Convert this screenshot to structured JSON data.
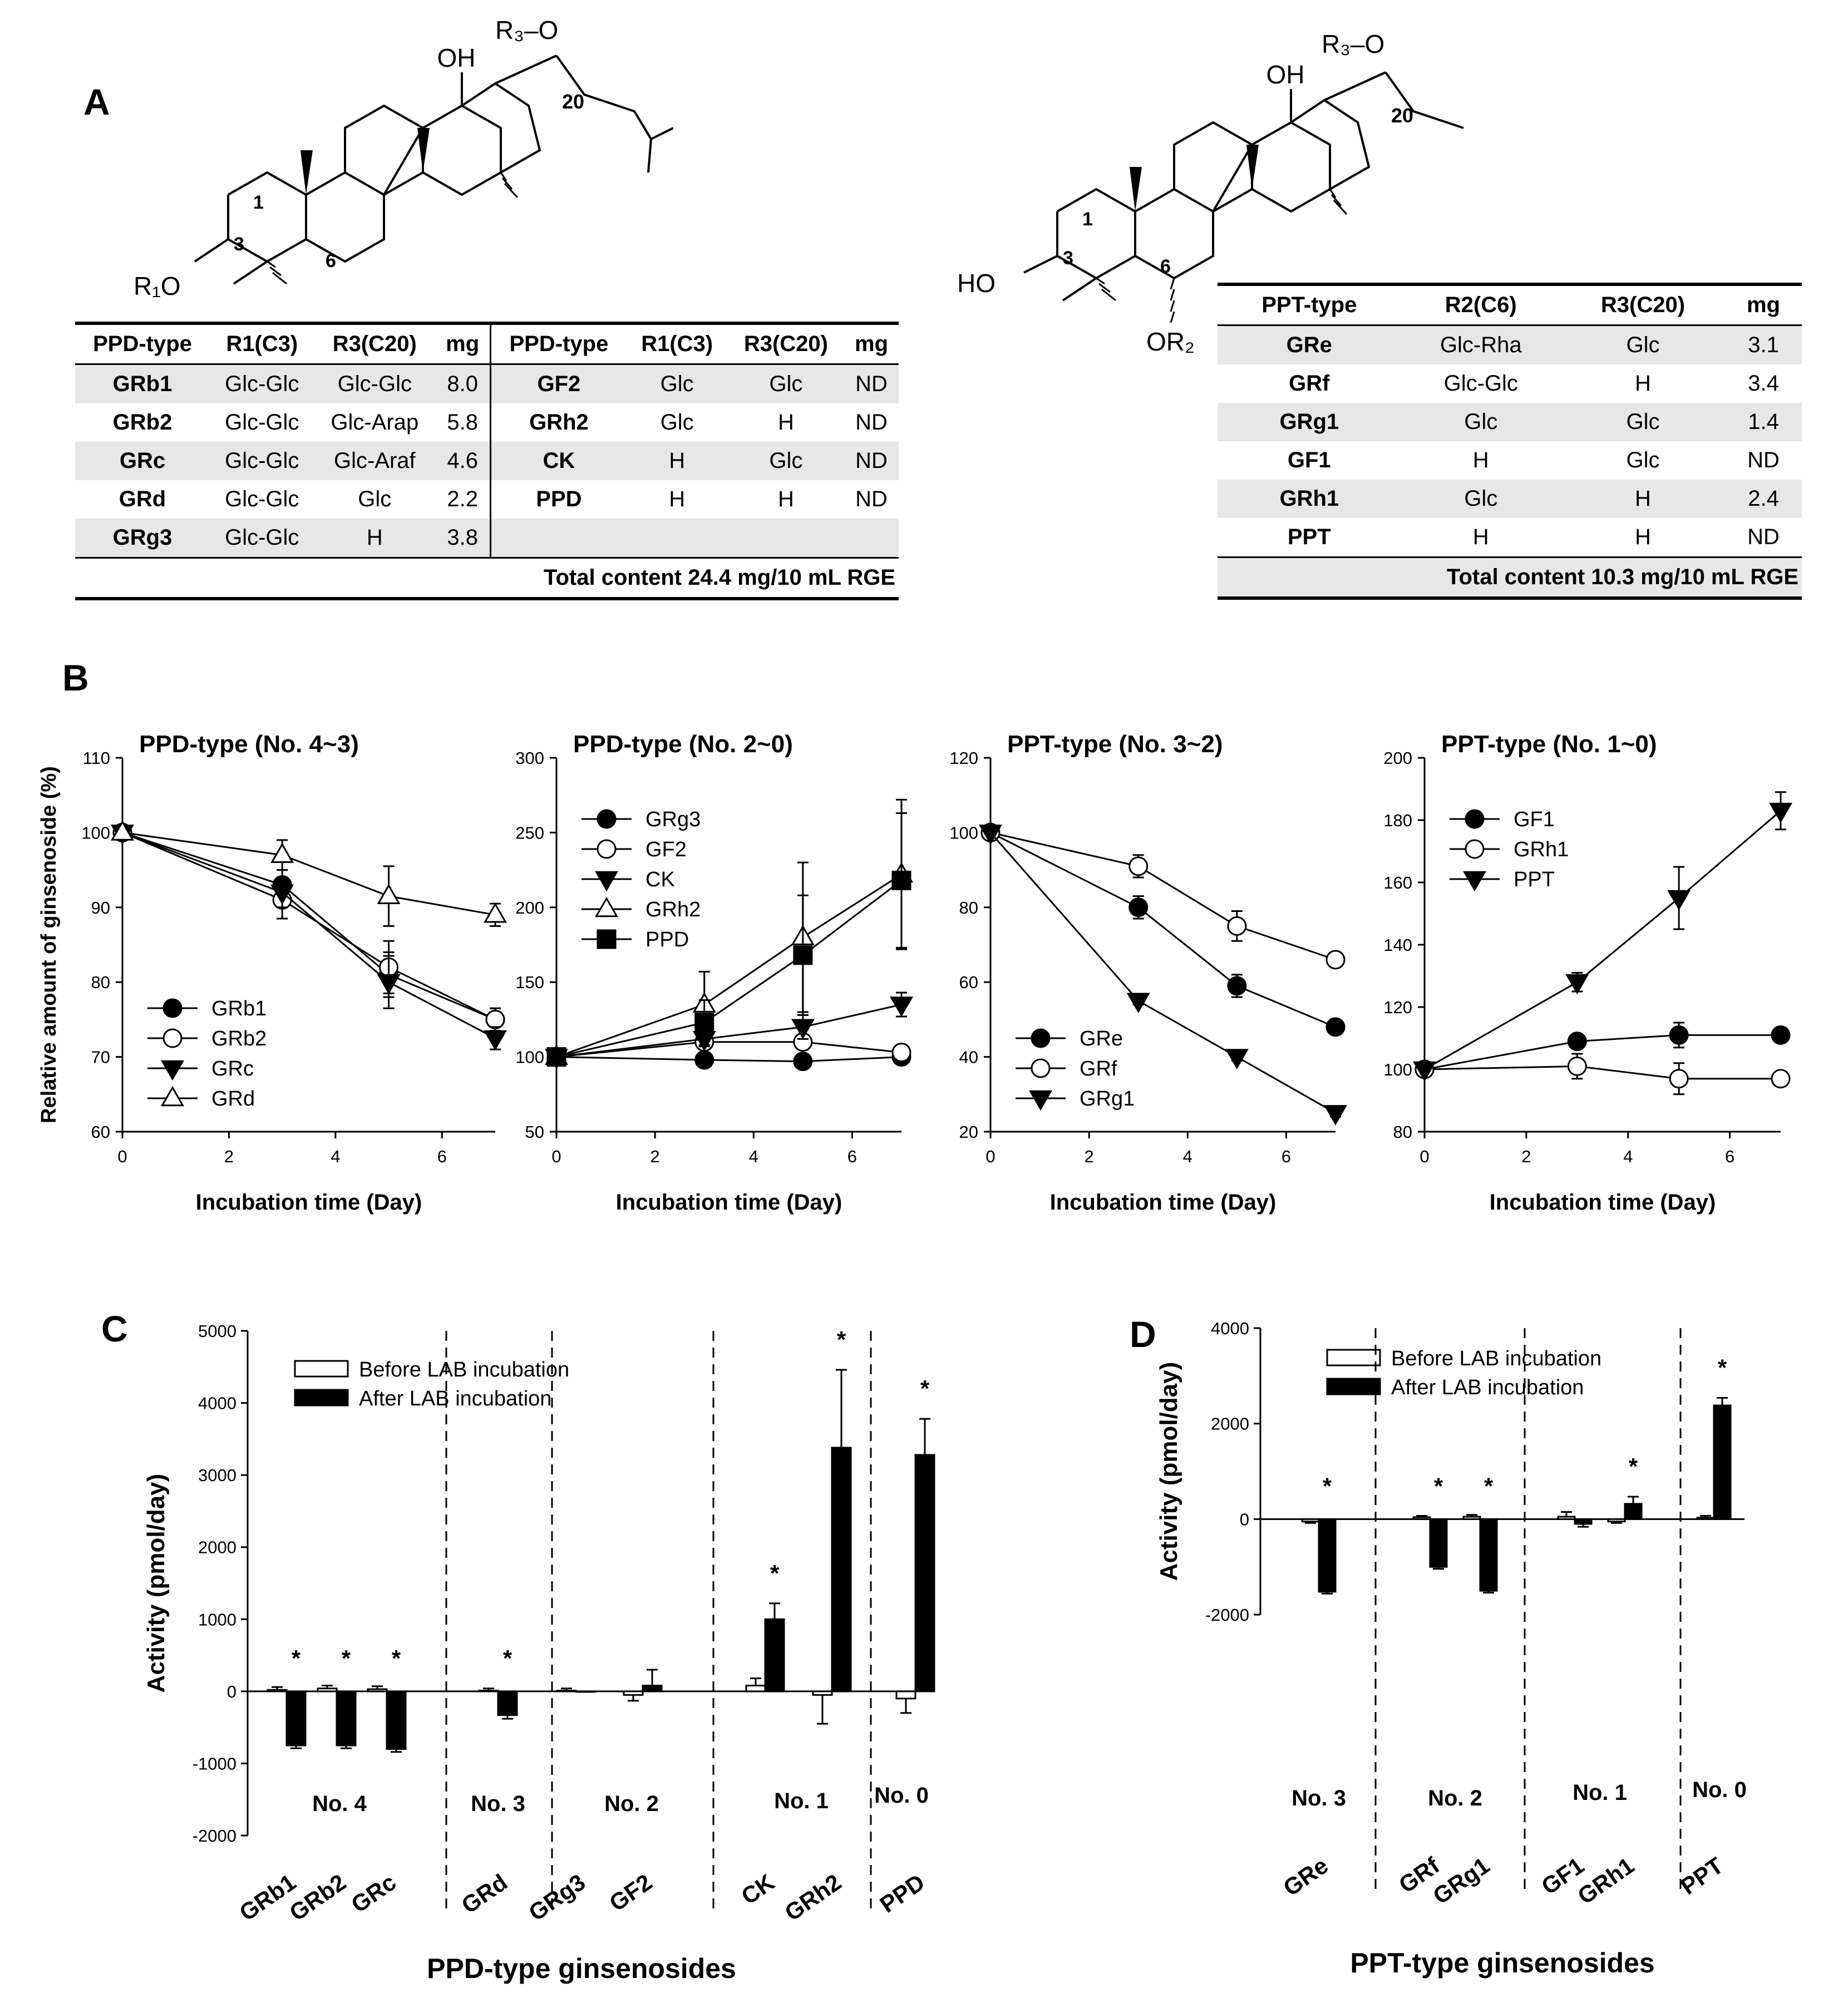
{
  "panels": {
    "a": "A",
    "b": "B",
    "c": "C",
    "d": "D"
  },
  "molecules": {
    "ppd": {
      "oh": "OH",
      "r3o": "R₃–O",
      "c20": "20",
      "c1": "1",
      "c3": "3",
      "c6": "6",
      "r1o": "R₁O"
    },
    "ppt": {
      "oh": "OH",
      "r3o": "R₃–O",
      "c20": "20",
      "c1": "1",
      "c3": "3",
      "c6": "6",
      "ho": "HO",
      "or2": "OR₂"
    }
  },
  "table_ppd": {
    "headers": [
      "PPD-type",
      "R1(C3)",
      "R3(C20)",
      "mg",
      "PPD-type",
      "R1(C3)",
      "R3(C20)",
      "mg"
    ],
    "rows": [
      [
        "GRb1",
        "Glc-Glc",
        "Glc-Glc",
        "8.0",
        "GF2",
        "Glc",
        "Glc",
        "ND"
      ],
      [
        "GRb2",
        "Glc-Glc",
        "Glc-Arap",
        "5.8",
        "GRh2",
        "Glc",
        "H",
        "ND"
      ],
      [
        "GRc",
        "Glc-Glc",
        "Glc-Araf",
        "4.6",
        "CK",
        "H",
        "Glc",
        "ND"
      ],
      [
        "GRd",
        "Glc-Glc",
        "Glc",
        "2.2",
        "PPD",
        "H",
        "H",
        "ND"
      ],
      [
        "GRg3",
        "Glc-Glc",
        "H",
        "3.8",
        "",
        "",
        "",
        ""
      ]
    ],
    "total": "Total content 24.4 mg/10 mL RGE"
  },
  "table_ppt": {
    "headers": [
      "PPT-type",
      "R2(C6)",
      "R3(C20)",
      "mg"
    ],
    "rows": [
      [
        "GRe",
        "Glc-Rha",
        "Glc",
        "3.1"
      ],
      [
        "GRf",
        "Glc-Glc",
        "H",
        "3.4"
      ],
      [
        "GRg1",
        "Glc",
        "Glc",
        "1.4"
      ],
      [
        "GF1",
        "H",
        "Glc",
        "ND"
      ],
      [
        "GRh1",
        "Glc",
        "H",
        "2.4"
      ],
      [
        "PPT",
        "H",
        "H",
        "ND"
      ]
    ],
    "total": "Total content  10.3 mg/10 mL RGE"
  },
  "chart_data": [
    {
      "id": "B1",
      "type": "line",
      "title": "PPD-type (No. 4~3)",
      "xlabel": "Incubation time (Day)",
      "ylabel": "Relative amount of ginsenoside (%)",
      "xlim": [
        0,
        7
      ],
      "xticks": [
        0,
        2,
        4,
        6
      ],
      "ylim": [
        60,
        110
      ],
      "yticks": [
        60,
        70,
        80,
        90,
        100,
        110
      ],
      "legend": "lower-left",
      "x": [
        0,
        3,
        5,
        7
      ],
      "series": [
        {
          "name": "GRb1",
          "marker": "filled-circle",
          "values": [
            100,
            93,
            81,
            75
          ],
          "err": [
            0,
            2,
            3,
            1.5
          ]
        },
        {
          "name": "GRb2",
          "marker": "open-circle",
          "values": [
            100,
            91,
            82,
            75
          ],
          "err": [
            0,
            2.5,
            3.5,
            1.5
          ]
        },
        {
          "name": "GRc",
          "marker": "filled-triangle-down",
          "values": [
            100,
            92,
            80,
            72.5
          ],
          "err": [
            0,
            2,
            3.5,
            1.5
          ]
        },
        {
          "name": "GRd",
          "marker": "open-triangle-up",
          "values": [
            100,
            97,
            91.5,
            89
          ],
          "err": [
            0,
            2,
            4,
            1.5
          ]
        }
      ]
    },
    {
      "id": "B2",
      "type": "line",
      "title": "PPD-type (No. 2~0)",
      "xlabel": "Incubation time (Day)",
      "xlim": [
        0,
        7
      ],
      "xticks": [
        0,
        2,
        4,
        6
      ],
      "ylim": [
        50,
        300
      ],
      "yticks": [
        50,
        100,
        150,
        200,
        250,
        300
      ],
      "legend": "top-left",
      "x": [
        0,
        3,
        5,
        7
      ],
      "series": [
        {
          "name": "GRg3",
          "marker": "filled-circle",
          "values": [
            100,
            98,
            97,
            100
          ],
          "err": [
            0,
            3,
            3,
            3
          ]
        },
        {
          "name": "GF2",
          "marker": "open-circle",
          "values": [
            100,
            110,
            110,
            103
          ],
          "err": [
            0,
            5,
            5,
            5
          ]
        },
        {
          "name": "CK",
          "marker": "filled-triangle-down",
          "values": [
            100,
            112,
            120,
            135
          ],
          "err": [
            0,
            5,
            8,
            8
          ]
        },
        {
          "name": "GRh2",
          "marker": "open-triangle-up",
          "values": [
            100,
            135,
            180,
            222
          ],
          "err": [
            0,
            22,
            50,
            50
          ]
        },
        {
          "name": "PPD",
          "marker": "filled-square",
          "values": [
            100,
            123,
            168,
            218
          ],
          "err": [
            0,
            15,
            40,
            45
          ]
        }
      ]
    },
    {
      "id": "B3",
      "type": "line",
      "title": "PPT-type (No. 3~2)",
      "xlabel": "Incubation time (Day)",
      "xlim": [
        0,
        7
      ],
      "xticks": [
        0,
        2,
        4,
        6
      ],
      "ylim": [
        20,
        120
      ],
      "yticks": [
        20,
        40,
        60,
        80,
        100,
        120
      ],
      "legend": "lower-left",
      "x": [
        0,
        3,
        5,
        7
      ],
      "series": [
        {
          "name": "GRe",
          "marker": "filled-circle",
          "values": [
            100,
            80,
            59,
            48
          ],
          "err": [
            0,
            3,
            3,
            1.5
          ]
        },
        {
          "name": "GRf",
          "marker": "open-circle",
          "values": [
            100,
            91,
            75,
            66
          ],
          "err": [
            0,
            3,
            4,
            1.5
          ]
        },
        {
          "name": "GRg1",
          "marker": "filled-triangle-down",
          "values": [
            100,
            55,
            40,
            25
          ],
          "err": [
            0,
            1,
            1,
            1
          ]
        }
      ]
    },
    {
      "id": "B4",
      "type": "line",
      "title": "PPT-type (No. 1~0)",
      "xlabel": "Incubation time (Day)",
      "xlim": [
        0,
        7
      ],
      "xticks": [
        0,
        2,
        4,
        6
      ],
      "ylim": [
        80,
        200
      ],
      "yticks": [
        80,
        100,
        120,
        140,
        160,
        180,
        200
      ],
      "legend": "top-left",
      "x": [
        0,
        3,
        5,
        7
      ],
      "series": [
        {
          "name": "GF1",
          "marker": "filled-circle",
          "values": [
            100,
            109,
            111,
            111
          ],
          "err": [
            0,
            2,
            4,
            2
          ]
        },
        {
          "name": "GRh1",
          "marker": "open-circle",
          "values": [
            100,
            101,
            97,
            97
          ],
          "err": [
            0,
            4,
            5,
            2
          ]
        },
        {
          "name": "PPT",
          "marker": "filled-triangle-down",
          "values": [
            100,
            128,
            155,
            183
          ],
          "err": [
            0,
            3,
            10,
            6
          ]
        }
      ]
    },
    {
      "id": "C",
      "type": "bar",
      "xlabel": "PPD-type ginsenosides",
      "ylabel": "Activity (pmol/day)",
      "ylim": [
        -2000,
        5000
      ],
      "yticks": [
        -2000,
        -1000,
        0,
        1000,
        2000,
        3000,
        4000,
        5000
      ],
      "legend": "top-left",
      "categories": [
        "GRb1",
        "GRb2",
        "GRc",
        "GRd",
        "GRg3",
        "GF2",
        "CK",
        "GRh2",
        "PPD"
      ],
      "series": [
        {
          "name": "Before LAB incubation",
          "values": [
            20,
            40,
            30,
            10,
            10,
            -50,
            80,
            -50,
            -100
          ],
          "err": [
            40,
            40,
            40,
            30,
            30,
            80,
            100,
            400,
            200
          ]
        },
        {
          "name": "After LAB incubation",
          "values": [
            -750,
            -750,
            -800,
            -330,
            0,
            80,
            1000,
            3380,
            3280
          ],
          "err": [
            40,
            40,
            40,
            50,
            0,
            220,
            220,
            1080,
            500
          ]
        }
      ],
      "significant": [
        true,
        true,
        true,
        true,
        false,
        false,
        true,
        true,
        true
      ],
      "group_labels": [
        "No. 4",
        "No. 3",
        "No. 2",
        "No. 1",
        "No. 0"
      ],
      "significance_mark": "*"
    },
    {
      "id": "D",
      "type": "bar",
      "xlabel": "PPT-type ginsenosides",
      "ylabel": "Activity (pmol/day)",
      "ylim": [
        -2000,
        4000
      ],
      "yticks": [
        -2000,
        0,
        2000,
        4000
      ],
      "legend": "top-left",
      "categories": [
        "GRe",
        "GRf",
        "GRg1",
        "GF1",
        "GRh1",
        "PPT"
      ],
      "series": [
        {
          "name": "Before LAB incubation",
          "values": [
            -50,
            40,
            50,
            50,
            -50,
            30
          ],
          "err": [
            30,
            30,
            40,
            100,
            30,
            40
          ]
        },
        {
          "name": "After LAB incubation",
          "values": [
            -1520,
            -1000,
            -1500,
            -100,
            320,
            2380
          ],
          "err": [
            40,
            40,
            40,
            60,
            150,
            160
          ]
        }
      ],
      "significant": [
        true,
        true,
        true,
        false,
        true,
        true
      ],
      "group_labels": [
        "No. 3",
        "No. 2",
        "No. 1",
        "No. 0"
      ],
      "significance_mark": "*"
    }
  ]
}
